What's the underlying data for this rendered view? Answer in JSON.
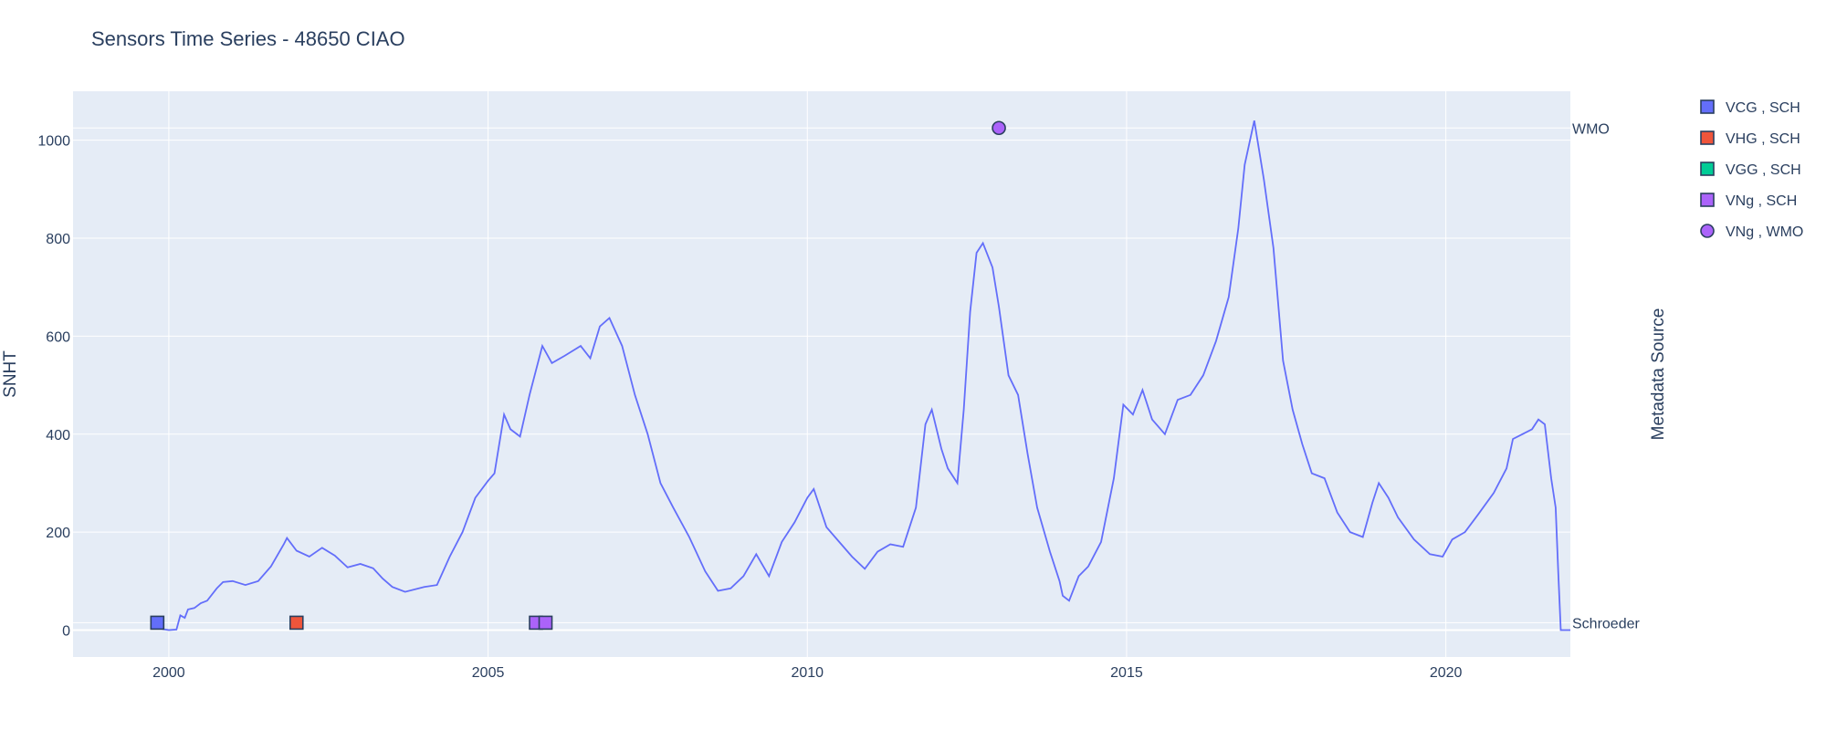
{
  "chart_data": {
    "type": "line",
    "title": "Sensors Time Series - 48650 CIAO",
    "ylabel": "SNHT",
    "y2label": "Metadata Source",
    "xlim": [
      1998.5,
      2021.95
    ],
    "ylim": [
      -55,
      1100
    ],
    "x_ticks": [
      "2000",
      "2005",
      "2010",
      "2015",
      "2020"
    ],
    "x_tick_values": [
      2000,
      2005,
      2010,
      2015,
      2020
    ],
    "y_ticks": [
      "0",
      "200",
      "400",
      "600",
      "800",
      "1000"
    ],
    "y_tick_values": [
      0,
      200,
      400,
      600,
      800,
      1000
    ],
    "y2_ticks": [
      {
        "label": "Schroeder",
        "value": 15
      },
      {
        "label": "WMO",
        "value": 1025
      }
    ],
    "grid": true,
    "legend_position": "top-right",
    "line_color": "#636efa",
    "series": [
      {
        "values": [
          [
            1999.85,
            5
          ],
          [
            1999.9,
            2
          ],
          [
            2000.0,
            0
          ],
          [
            2000.12,
            1
          ],
          [
            2000.18,
            30
          ],
          [
            2000.25,
            25
          ],
          [
            2000.3,
            42
          ],
          [
            2000.4,
            45
          ],
          [
            2000.5,
            55
          ],
          [
            2000.6,
            60
          ],
          [
            2000.75,
            85
          ],
          [
            2000.85,
            98
          ],
          [
            2001.0,
            100
          ],
          [
            2001.2,
            92
          ],
          [
            2001.4,
            100
          ],
          [
            2001.6,
            130
          ],
          [
            2001.8,
            175
          ],
          [
            2001.85,
            188
          ],
          [
            2002.0,
            162
          ],
          [
            2002.2,
            150
          ],
          [
            2002.4,
            168
          ],
          [
            2002.6,
            152
          ],
          [
            2002.8,
            128
          ],
          [
            2003.0,
            135
          ],
          [
            2003.2,
            126
          ],
          [
            2003.35,
            105
          ],
          [
            2003.5,
            88
          ],
          [
            2003.7,
            78
          ],
          [
            2004.0,
            88
          ],
          [
            2004.2,
            92
          ],
          [
            2004.4,
            150
          ],
          [
            2004.6,
            200
          ],
          [
            2004.8,
            270
          ],
          [
            2005.0,
            305
          ],
          [
            2005.1,
            320
          ],
          [
            2005.25,
            440
          ],
          [
            2005.35,
            410
          ],
          [
            2005.5,
            395
          ],
          [
            2005.65,
            480
          ],
          [
            2005.85,
            580
          ],
          [
            2006.0,
            545
          ],
          [
            2006.2,
            560
          ],
          [
            2006.45,
            580
          ],
          [
            2006.6,
            555
          ],
          [
            2006.75,
            620
          ],
          [
            2006.9,
            637
          ],
          [
            2007.1,
            580
          ],
          [
            2007.3,
            480
          ],
          [
            2007.5,
            400
          ],
          [
            2007.7,
            300
          ],
          [
            2007.9,
            250
          ],
          [
            2008.15,
            190
          ],
          [
            2008.4,
            120
          ],
          [
            2008.6,
            80
          ],
          [
            2008.8,
            85
          ],
          [
            2009.0,
            110
          ],
          [
            2009.2,
            155
          ],
          [
            2009.4,
            110
          ],
          [
            2009.6,
            180
          ],
          [
            2009.8,
            220
          ],
          [
            2010.0,
            270
          ],
          [
            2010.1,
            288
          ],
          [
            2010.3,
            210
          ],
          [
            2010.5,
            180
          ],
          [
            2010.7,
            150
          ],
          [
            2010.9,
            125
          ],
          [
            2011.1,
            160
          ],
          [
            2011.3,
            175
          ],
          [
            2011.5,
            170
          ],
          [
            2011.7,
            250
          ],
          [
            2011.85,
            420
          ],
          [
            2011.95,
            450
          ],
          [
            2012.1,
            370
          ],
          [
            2012.2,
            330
          ],
          [
            2012.35,
            300
          ],
          [
            2012.45,
            450
          ],
          [
            2012.55,
            650
          ],
          [
            2012.65,
            770
          ],
          [
            2012.75,
            790
          ],
          [
            2012.9,
            740
          ],
          [
            2013.0,
            660
          ],
          [
            2013.15,
            520
          ],
          [
            2013.3,
            480
          ],
          [
            2013.45,
            360
          ],
          [
            2013.6,
            250
          ],
          [
            2013.8,
            160
          ],
          [
            2013.95,
            100
          ],
          [
            2014.0,
            70
          ],
          [
            2014.1,
            60
          ],
          [
            2014.25,
            110
          ],
          [
            2014.4,
            130
          ],
          [
            2014.6,
            180
          ],
          [
            2014.8,
            310
          ],
          [
            2014.95,
            460
          ],
          [
            2015.1,
            440
          ],
          [
            2015.25,
            490
          ],
          [
            2015.4,
            430
          ],
          [
            2015.6,
            400
          ],
          [
            2015.8,
            470
          ],
          [
            2016.0,
            480
          ],
          [
            2016.2,
            520
          ],
          [
            2016.4,
            590
          ],
          [
            2016.6,
            680
          ],
          [
            2016.75,
            820
          ],
          [
            2016.85,
            950
          ],
          [
            2017.0,
            1040
          ],
          [
            2017.15,
            920
          ],
          [
            2017.3,
            780
          ],
          [
            2017.45,
            550
          ],
          [
            2017.6,
            450
          ],
          [
            2017.75,
            380
          ],
          [
            2017.9,
            320
          ],
          [
            2018.1,
            310
          ],
          [
            2018.3,
            240
          ],
          [
            2018.5,
            200
          ],
          [
            2018.7,
            190
          ],
          [
            2018.85,
            260
          ],
          [
            2018.95,
            300
          ],
          [
            2019.1,
            270
          ],
          [
            2019.25,
            230
          ],
          [
            2019.5,
            185
          ],
          [
            2019.75,
            155
          ],
          [
            2019.95,
            150
          ],
          [
            2020.1,
            185
          ],
          [
            2020.3,
            200
          ],
          [
            2020.5,
            235
          ],
          [
            2020.75,
            280
          ],
          [
            2020.95,
            330
          ],
          [
            2021.05,
            390
          ],
          [
            2021.2,
            400
          ],
          [
            2021.35,
            410
          ],
          [
            2021.45,
            430
          ],
          [
            2021.55,
            420
          ],
          [
            2021.65,
            310
          ],
          [
            2021.72,
            250
          ],
          [
            2021.76,
            120
          ],
          [
            2021.8,
            0
          ],
          [
            2021.95,
            0
          ]
        ]
      }
    ],
    "markers": [
      {
        "legend": "VCG , SCH",
        "symbol": "square",
        "color": "#636efa",
        "points": [
          [
            1999.82,
            15
          ]
        ]
      },
      {
        "legend": "VHG , SCH",
        "symbol": "square",
        "color": "#ef553b",
        "points": [
          [
            2002.0,
            15
          ]
        ]
      },
      {
        "legend": "VGG , SCH",
        "symbol": "square",
        "color": "#00cc96",
        "points": []
      },
      {
        "legend": "VNg , SCH",
        "symbol": "square",
        "color": "#ab63fa",
        "points": [
          [
            2005.75,
            15
          ],
          [
            2005.9,
            15
          ]
        ]
      },
      {
        "legend": "VNg , WMO",
        "symbol": "circle",
        "color": "#ab63fa",
        "points": [
          [
            2013.0,
            1025
          ]
        ]
      }
    ]
  }
}
